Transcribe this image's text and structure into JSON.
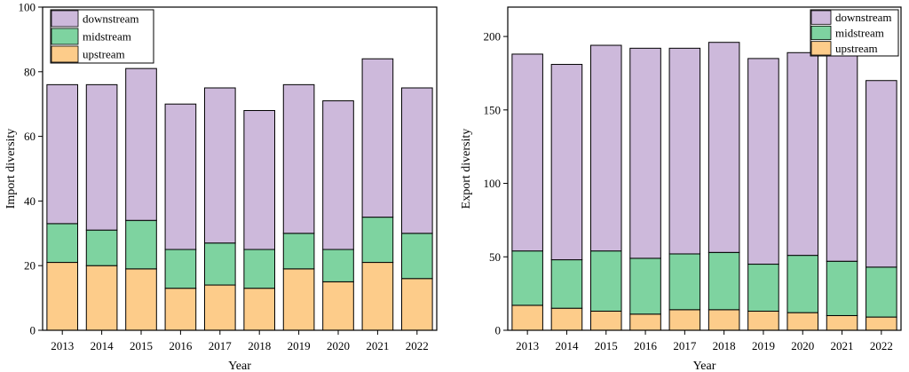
{
  "chart_data": [
    {
      "type": "bar",
      "stacked": true,
      "xlabel": "Year",
      "ylabel": "Import diversity",
      "ylim": [
        0,
        100
      ],
      "yticks": [
        0,
        20,
        40,
        60,
        80,
        100
      ],
      "legend_position": "top-left",
      "categories": [
        "2013",
        "2014",
        "2015",
        "2016",
        "2017",
        "2018",
        "2019",
        "2020",
        "2021",
        "2022"
      ],
      "series": [
        {
          "name": "upstream",
          "color": "#fdcc8a",
          "values": [
            21,
            20,
            19,
            13,
            14,
            13,
            19,
            15,
            21,
            16
          ]
        },
        {
          "name": "midstream",
          "color": "#7ed3a0",
          "values": [
            12,
            11,
            15,
            12,
            13,
            12,
            11,
            10,
            14,
            14
          ]
        },
        {
          "name": "downstream",
          "color": "#cdb9db",
          "values": [
            43,
            45,
            47,
            45,
            48,
            43,
            46,
            46,
            49,
            45
          ]
        }
      ],
      "legend_order": [
        "downstream",
        "midstream",
        "upstream"
      ]
    },
    {
      "type": "bar",
      "stacked": true,
      "xlabel": "Year",
      "ylabel": "Export diversity",
      "ylim": [
        0,
        220
      ],
      "yticks": [
        0,
        50,
        100,
        150,
        200
      ],
      "legend_position": "top-right",
      "categories": [
        "2013",
        "2014",
        "2015",
        "2016",
        "2017",
        "2018",
        "2019",
        "2020",
        "2021",
        "2022"
      ],
      "series": [
        {
          "name": "upstream",
          "color": "#fdcc8a",
          "values": [
            17,
            15,
            13,
            11,
            14,
            14,
            13,
            12,
            10,
            9
          ]
        },
        {
          "name": "midstream",
          "color": "#7ed3a0",
          "values": [
            37,
            33,
            41,
            38,
            38,
            39,
            32,
            39,
            37,
            34
          ]
        },
        {
          "name": "downstream",
          "color": "#cdb9db",
          "values": [
            134,
            133,
            140,
            143,
            140,
            143,
            140,
            138,
            143,
            127
          ]
        }
      ],
      "legend_order": [
        "downstream",
        "midstream",
        "upstream"
      ]
    }
  ]
}
